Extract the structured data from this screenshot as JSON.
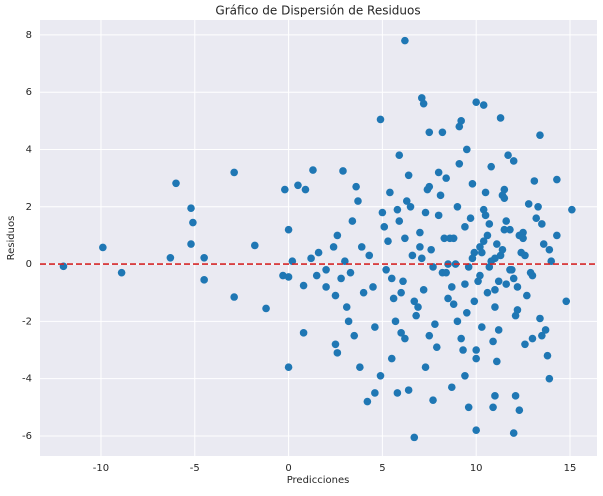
{
  "chart_data": {
    "type": "scatter",
    "title": "Gráfico de Dispersión de Residuos",
    "xlabel": "Predicciones",
    "ylabel": "Residuos",
    "color": "#1f77b4",
    "grid": true,
    "xlim": [
      -13.25,
      16.44
    ],
    "ylim": [
      -6.7,
      8.52
    ],
    "xticks": [
      -10,
      -5,
      0,
      5,
      10,
      15
    ],
    "yticks": [
      -6,
      -4,
      -2,
      0,
      2,
      4,
      6,
      8
    ],
    "hline": {
      "y": 0,
      "color": "#d62728"
    },
    "x": [
      -12.0,
      -9.9,
      -8.9,
      -6.3,
      -6.0,
      -5.2,
      -5.1,
      -5.2,
      -4.5,
      -4.5,
      -2.9,
      -2.9,
      -1.8,
      -1.2,
      -0.2,
      -0.3,
      0.0,
      0.2,
      0.0,
      0.0,
      0.5,
      0.9,
      0.8,
      0.8,
      1.3,
      1.2,
      1.6,
      1.5,
      2.0,
      2.0,
      2.4,
      2.6,
      2.8,
      2.9,
      2.5,
      3.0,
      3.1,
      3.3,
      2.5,
      2.6,
      3.2,
      3.6,
      3.7,
      3.4,
      3.9,
      3.5,
      3.8,
      4.0,
      4.3,
      4.5,
      4.6,
      4.2,
      4.6,
      4.9,
      4.9,
      5.2,
      5.0,
      5.5,
      5.4,
      6.2,
      5.8,
      5.9,
      6.2,
      6.4,
      6.7,
      7.1,
      7.2,
      7.3,
      7.5,
      7.7,
      8.2,
      8.7,
      9.1,
      9.2,
      9.4,
      9.6,
      10.0,
      10.0,
      10.4,
      10.9,
      11.0,
      11.3,
      12.0,
      12.3,
      12.1,
      13.4,
      13.9,
      14.3,
      14.8,
      15.1,
      14.3,
      5.3,
      5.6,
      5.9,
      6.1,
      6.3,
      6.6,
      6.8,
      7.0,
      7.2,
      7.4,
      7.6,
      7.8,
      8.0,
      8.2,
      8.4,
      8.6,
      8.8,
      9.0,
      9.2,
      9.4,
      9.6,
      9.8,
      10.0,
      10.2,
      10.4,
      10.6,
      10.8,
      11.0,
      11.2,
      11.4,
      11.6,
      11.8,
      12.0,
      12.2,
      12.4,
      12.6,
      12.8,
      13.0,
      13.2,
      13.4,
      13.6,
      13.8,
      14.0,
      5.5,
      5.8,
      6.0,
      6.4,
      6.7,
      7.1,
      7.5,
      7.9,
      8.3,
      8.7,
      9.1,
      9.5,
      9.9,
      10.3,
      10.7,
      11.1,
      11.5,
      11.9,
      12.3,
      12.7,
      13.1,
      13.5,
      13.9,
      5.1,
      5.7,
      6.2,
      6.9,
      7.3,
      7.7,
      8.1,
      8.5,
      8.9,
      9.3,
      9.7,
      10.1,
      10.5,
      10.9,
      11.3,
      11.7,
      12.1,
      12.5,
      12.9,
      13.3,
      13.7,
      6.0,
      6.5,
      7.0,
      7.5,
      8.0,
      8.5,
      9.0,
      9.5,
      10.0,
      10.5,
      11.0,
      11.5,
      12.0,
      12.5,
      13.0,
      13.5,
      9.8,
      10.2,
      10.6,
      11.0,
      11.4,
      11.8,
      10.4,
      10.8,
      11.2,
      11.6,
      9.9,
      10.3,
      10.7,
      11.1,
      11.5,
      12.2,
      12.6,
      9.4,
      8.8,
      8.4
    ],
    "values": [
      -0.08,
      0.58,
      -0.3,
      0.22,
      2.82,
      1.95,
      1.45,
      0.7,
      0.22,
      -0.55,
      3.2,
      -1.15,
      0.65,
      -1.55,
      2.6,
      -0.4,
      1.2,
      0.1,
      -0.45,
      -3.6,
      2.75,
      2.6,
      -0.75,
      -2.4,
      3.28,
      0.2,
      0.4,
      -0.4,
      -0.2,
      -0.8,
      0.6,
      1.0,
      -0.5,
      3.25,
      -1.1,
      0.1,
      -1.5,
      -0.3,
      -2.8,
      -3.1,
      -2.0,
      2.7,
      2.2,
      1.5,
      0.6,
      -2.5,
      -3.6,
      -1.0,
      0.3,
      -0.8,
      -2.2,
      -4.8,
      -4.5,
      5.05,
      -3.9,
      -0.2,
      1.8,
      -3.3,
      2.5,
      7.8,
      -4.5,
      3.8,
      -2.6,
      -4.4,
      -6.05,
      5.8,
      5.6,
      -3.6,
      4.6,
      -4.75,
      4.6,
      -4.3,
      4.8,
      5.0,
      -3.9,
      -5.0,
      -5.8,
      5.65,
      5.55,
      -5.0,
      -4.6,
      5.1,
      -5.9,
      -5.1,
      -4.6,
      4.5,
      -4.0,
      1.0,
      -1.3,
      1.9,
      2.95,
      0.8,
      -1.2,
      1.5,
      -0.6,
      2.2,
      0.3,
      -1.8,
      1.1,
      -0.9,
      2.6,
      0.5,
      -2.1,
      1.7,
      -0.3,
      3.0,
      0.9,
      -1.4,
      2.0,
      -2.6,
      1.3,
      -0.1,
      2.8,
      -3.0,
      0.6,
      1.9,
      -1.0,
      3.4,
      0.2,
      -2.3,
      2.4,
      -0.7,
      1.2,
      3.6,
      -1.6,
      0.4,
      -2.8,
      2.1,
      -0.4,
      1.6,
      -1.9,
      0.7,
      -3.2,
      0.1,
      -0.5,
      1.9,
      -2.4,
      3.1,
      -1.3,
      0.2,
      2.7,
      -2.9,
      0.9,
      -0.8,
      3.5,
      -1.7,
      0.4,
      -2.2,
      1.4,
      -3.4,
      2.3,
      -0.2,
      1.0,
      -1.1,
      2.9,
      -2.5,
      0.5,
      1.3,
      -2.0,
      0.9,
      -1.5,
      1.8,
      -0.1,
      2.4,
      -1.2,
      0.0,
      -3.0,
      1.6,
      -0.6,
      2.5,
      -2.7,
      0.3,
      3.8,
      -1.8,
      1.1,
      -0.3,
      2.0,
      -2.3,
      -1.0,
      2.0,
      0.6,
      -2.5,
      3.2,
      0.0,
      -2.0,
      4.0,
      -3.3,
      1.7,
      -1.5,
      2.6,
      -0.5,
      0.9,
      -2.6,
      1.4,
      0.2,
      -0.4,
      1.0,
      -0.9,
      0.5,
      -0.2,
      0.8,
      0.1,
      -0.6,
      1.5,
      -1.3,
      0.4,
      -0.1,
      0.7,
      1.2,
      -0.8,
      0.3,
      -0.7,
      0.9,
      -0.3
    ]
  }
}
